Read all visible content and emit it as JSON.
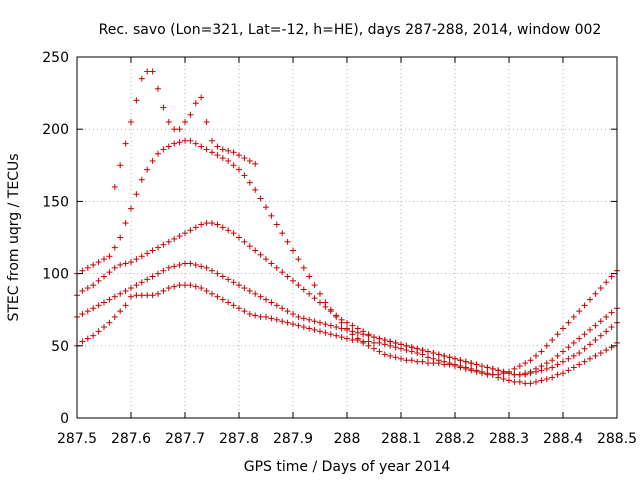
{
  "chart_data": {
    "type": "scatter",
    "title": "Rec. savo (Lon=321, Lat=-12, h=HE), days 287-288, 2014, window 002",
    "xlabel": "GPS time / Days of year 2014",
    "ylabel": "STEC from uqrg / TECUs",
    "xlim": [
      287.5,
      288.5
    ],
    "ylim": [
      0,
      250
    ],
    "x_ticks": [
      "287.5",
      "287.6",
      "287.7",
      "287.8",
      "287.9",
      "288",
      "288.1",
      "288.2",
      "288.3",
      "288.4",
      "288.5"
    ],
    "y_ticks": [
      "0",
      "50",
      "100",
      "150",
      "200",
      "250"
    ],
    "marker": "plus",
    "grid": true,
    "grid_style": "dotted",
    "color": "#cc0000",
    "series": [
      {
        "x": [
          287.5,
          287.51,
          287.52,
          287.53,
          287.54,
          287.55,
          287.56,
          287.57,
          287.58,
          287.59,
          287.6,
          287.61,
          287.62,
          287.63,
          287.64,
          287.65,
          287.66,
          287.67,
          287.68,
          287.69,
          287.7,
          287.71,
          287.72,
          287.73,
          287.74,
          287.75,
          287.76,
          287.77,
          287.78,
          287.79,
          287.8,
          287.81,
          287.82,
          287.83,
          287.84,
          287.85,
          287.86,
          287.87,
          287.88,
          287.89,
          287.9,
          287.91,
          287.92,
          287.93,
          287.94,
          287.95,
          287.96,
          287.97,
          287.98,
          287.99,
          288.0,
          288.01,
          288.02,
          288.03,
          288.04,
          288.05,
          288.06,
          288.07,
          288.08,
          288.09,
          288.1,
          288.11,
          288.12,
          288.13,
          288.14,
          288.15,
          288.16,
          288.17,
          288.18,
          288.19,
          288.2,
          288.21,
          288.22,
          288.23,
          288.24,
          288.25,
          288.26,
          288.27,
          288.28,
          288.29,
          288.3,
          288.31,
          288.32,
          288.33,
          288.34,
          288.35,
          288.36,
          288.37,
          288.38,
          288.39,
          288.4,
          288.41,
          288.42,
          288.43,
          288.44,
          288.45,
          288.46,
          288.47,
          288.48,
          288.49,
          288.5
        ],
        "y": [
          50,
          53,
          55,
          57,
          60,
          63,
          66,
          70,
          74,
          78,
          84,
          85,
          85,
          85,
          85,
          86,
          88,
          90,
          91,
          92,
          92,
          92,
          91,
          90,
          88,
          86,
          84,
          82,
          80,
          78,
          76,
          74,
          72,
          71,
          70,
          70,
          69,
          68,
          67,
          66,
          65,
          64,
          63,
          62,
          61,
          60,
          59,
          58,
          57,
          56,
          55,
          54,
          54,
          53,
          53,
          52,
          52,
          51,
          50,
          49,
          48,
          47,
          46,
          45,
          44,
          42,
          41,
          40,
          39,
          38,
          37,
          36,
          35,
          34,
          33,
          32,
          31,
          30,
          28,
          27,
          26,
          25,
          25,
          24,
          24,
          25,
          26,
          27,
          28,
          30,
          31,
          33,
          35,
          37,
          39,
          41,
          43,
          45,
          47,
          49,
          52
        ]
      },
      {
        "x": [
          287.5,
          287.51,
          287.52,
          287.53,
          287.54,
          287.55,
          287.56,
          287.57,
          287.58,
          287.59,
          287.6,
          287.61,
          287.62,
          287.63,
          287.64,
          287.65,
          287.66,
          287.67,
          287.68,
          287.69,
          287.7,
          287.71,
          287.72,
          287.73,
          287.74,
          287.75,
          287.76,
          287.77,
          287.78,
          287.79,
          287.8,
          287.81,
          287.82,
          287.83,
          287.84,
          287.85,
          287.86,
          287.87,
          287.88,
          287.89,
          287.9,
          287.91,
          287.92,
          287.93,
          287.94,
          287.95,
          287.96,
          287.97,
          287.98,
          287.99,
          288.0,
          288.01,
          288.02,
          288.03,
          288.04,
          288.05,
          288.06,
          288.07,
          288.08,
          288.09,
          288.1,
          288.11,
          288.12,
          288.13,
          288.14,
          288.15,
          288.16,
          288.17,
          288.18,
          288.19,
          288.2,
          288.21,
          288.22,
          288.23,
          288.24,
          288.25,
          288.26,
          288.27,
          288.28,
          288.29,
          288.3,
          288.31,
          288.32,
          288.33,
          288.34,
          288.35,
          288.36,
          288.37,
          288.38,
          288.39,
          288.4,
          288.41,
          288.42,
          288.43,
          288.44,
          288.45,
          288.46,
          288.47,
          288.48,
          288.49,
          288.5
        ],
        "y": [
          70,
          72,
          74,
          76,
          78,
          80,
          82,
          84,
          86,
          88,
          90,
          92,
          94,
          96,
          98,
          100,
          102,
          104,
          105,
          106,
          107,
          107,
          106,
          105,
          104,
          102,
          100,
          98,
          96,
          94,
          92,
          90,
          88,
          86,
          84,
          82,
          80,
          78,
          76,
          74,
          72,
          70,
          69,
          68,
          67,
          66,
          65,
          64,
          63,
          62,
          61,
          60,
          59,
          58,
          57,
          56,
          55,
          54,
          53,
          52,
          51,
          50,
          49,
          48,
          47,
          46,
          45,
          44,
          43,
          42,
          41,
          40,
          39,
          38,
          37,
          36,
          35,
          34,
          33,
          32,
          31,
          30,
          30,
          30,
          31,
          32,
          33,
          34,
          35,
          37,
          39,
          41,
          43,
          45,
          48,
          51,
          54,
          57,
          60,
          63,
          66
        ]
      },
      {
        "x": [
          287.5,
          287.51,
          287.52,
          287.53,
          287.54,
          287.55,
          287.56,
          287.57,
          287.58,
          287.59,
          287.6,
          287.61,
          287.62,
          287.63,
          287.64,
          287.65,
          287.66,
          287.67,
          287.68,
          287.69,
          287.7,
          287.71,
          287.72,
          287.73,
          287.74,
          287.75,
          287.76,
          287.77,
          287.78,
          287.79,
          287.8,
          287.81,
          287.82,
          287.83,
          287.84,
          287.85,
          287.86,
          287.87,
          287.88,
          287.89,
          287.9,
          287.91,
          287.92,
          287.93,
          287.94,
          287.95,
          287.96,
          287.97,
          287.98,
          287.99,
          288.0,
          288.01,
          288.02,
          288.03,
          288.04,
          288.05,
          288.06,
          288.07,
          288.08,
          288.09,
          288.1,
          288.11,
          288.12,
          288.13,
          288.14,
          288.15,
          288.16,
          288.17,
          288.18,
          288.19,
          288.2,
          288.21,
          288.22,
          288.23,
          288.24,
          288.25,
          288.26,
          288.27,
          288.28,
          288.29,
          288.3,
          288.31,
          288.32,
          288.33,
          288.34,
          288.35,
          288.36,
          288.37,
          288.38,
          288.39,
          288.4,
          288.41,
          288.42,
          288.43,
          288.44,
          288.45,
          288.46,
          288.47,
          288.48,
          288.49,
          288.5
        ],
        "y": [
          85,
          88,
          90,
          92,
          95,
          98,
          101,
          104,
          106,
          107,
          108,
          110,
          112,
          114,
          116,
          118,
          120,
          122,
          124,
          126,
          128,
          130,
          132,
          134,
          135,
          135,
          134,
          132,
          130,
          128,
          125,
          122,
          119,
          116,
          113,
          110,
          107,
          104,
          101,
          98,
          95,
          92,
          89,
          86,
          83,
          80,
          77,
          74,
          71,
          68,
          66,
          64,
          62,
          60,
          58,
          56,
          55,
          54,
          53,
          52,
          51,
          50,
          49,
          48,
          47,
          46,
          45,
          44,
          43,
          42,
          41,
          40,
          39,
          38,
          37,
          36,
          35,
          34,
          33,
          32,
          31,
          30,
          30,
          31,
          32,
          34,
          36,
          38,
          40,
          43,
          46,
          49,
          52,
          55,
          58,
          61,
          64,
          67,
          70,
          73,
          76
        ]
      },
      {
        "x": [
          287.5,
          287.51,
          287.52,
          287.53,
          287.54,
          287.55,
          287.56,
          287.57,
          287.58,
          287.59,
          287.6,
          287.61,
          287.62,
          287.63,
          287.64,
          287.65,
          287.66,
          287.67,
          287.68,
          287.69,
          287.7,
          287.71,
          287.72,
          287.73,
          287.74,
          287.75,
          287.76,
          287.77,
          287.78,
          287.79,
          287.8,
          287.81,
          287.82,
          287.83,
          287.84,
          287.85,
          287.86,
          287.87,
          287.88,
          287.89,
          287.9,
          287.91,
          287.92,
          287.93,
          287.94,
          287.95,
          287.96,
          287.97,
          287.98,
          287.99,
          288.0,
          288.01,
          288.02,
          288.03,
          288.04,
          288.05,
          288.06,
          288.07,
          288.08,
          288.09,
          288.1,
          288.11,
          288.12,
          288.13,
          288.14,
          288.15,
          288.16,
          288.17,
          288.18,
          288.19,
          288.2,
          288.21,
          288.22,
          288.23,
          288.24,
          288.25,
          288.26,
          288.27,
          288.28,
          288.29,
          288.3,
          288.31,
          288.32,
          288.33,
          288.34,
          288.35,
          288.36,
          288.37,
          288.38,
          288.39,
          288.4,
          288.41,
          288.42,
          288.43,
          288.44,
          288.45,
          288.46,
          288.47,
          288.48,
          288.49,
          288.5
        ],
        "y": [
          100,
          102,
          104,
          106,
          108,
          110,
          112,
          118,
          125,
          135,
          145,
          155,
          165,
          172,
          178,
          183,
          186,
          188,
          190,
          191,
          192,
          192,
          190,
          188,
          186,
          184,
          182,
          180,
          178,
          175,
          172,
          168,
          163,
          158,
          152,
          146,
          140,
          134,
          128,
          122,
          116,
          110,
          104,
          98,
          92,
          86,
          80,
          75,
          70,
          66,
          62,
          58,
          55,
          52,
          50,
          48,
          46,
          44,
          43,
          42,
          41,
          40,
          40,
          39,
          39,
          38,
          38,
          38,
          37,
          37,
          36,
          35,
          34,
          33,
          32,
          31,
          30,
          30,
          30,
          31,
          32,
          34,
          36,
          38,
          40,
          43,
          46,
          50,
          54,
          58,
          62,
          66,
          70,
          74,
          78,
          82,
          86,
          90,
          94,
          98,
          102
        ]
      },
      {
        "x": [
          287.57,
          287.58,
          287.59,
          287.6,
          287.61,
          287.62,
          287.63,
          287.64,
          287.65,
          287.66,
          287.67,
          287.68,
          287.69,
          287.7,
          287.71,
          287.72,
          287.73,
          287.74,
          287.75,
          287.76,
          287.77,
          287.78,
          287.79,
          287.8,
          287.81,
          287.82,
          287.83
        ],
        "y": [
          160,
          175,
          190,
          205,
          220,
          235,
          240,
          240,
          228,
          215,
          205,
          200,
          200,
          205,
          210,
          218,
          222,
          205,
          192,
          188,
          186,
          185,
          184,
          182,
          180,
          178,
          176
        ]
      }
    ]
  }
}
